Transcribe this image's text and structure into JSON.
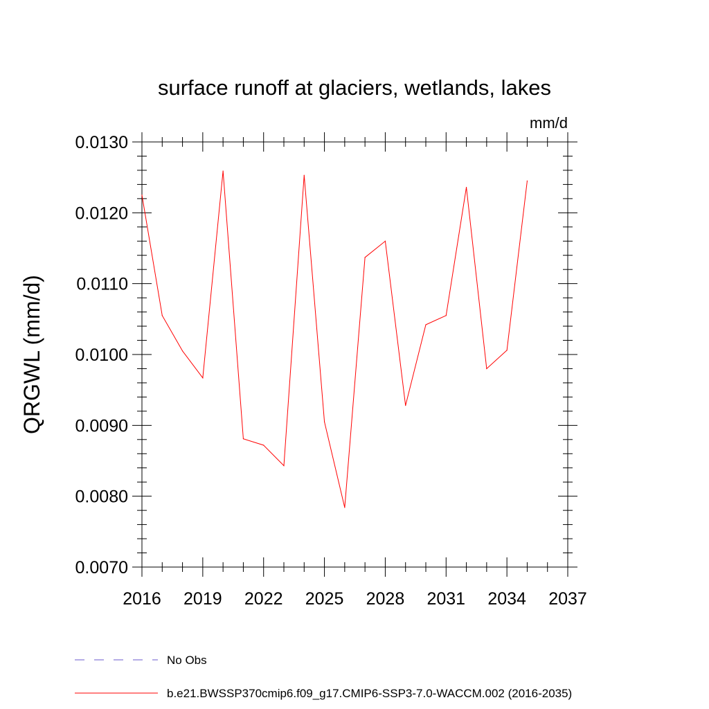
{
  "chart_data": {
    "type": "line",
    "title": "surface runoff at glaciers, wetlands, lakes",
    "units": "mm/d",
    "ylabel": "QRGWL  (mm/d)",
    "xlabel": "",
    "xlim": [
      2016,
      2037
    ],
    "ylim": [
      0.007,
      0.013
    ],
    "x_ticks": [
      "2016",
      "2019",
      "2022",
      "2025",
      "2028",
      "2031",
      "2034",
      "2037"
    ],
    "y_ticks": [
      "0.0070",
      "0.0080",
      "0.0090",
      "0.0100",
      "0.0110",
      "0.0120",
      "0.0130"
    ],
    "x": [
      2016,
      2017,
      2018,
      2019,
      2020,
      2021,
      2022,
      2023,
      2024,
      2025,
      2026,
      2027,
      2028,
      2029,
      2030,
      2031,
      2032,
      2033,
      2034,
      2035
    ],
    "series": [
      {
        "name": "b.e21.BWSSP370cmip6.f09_g17.CMIP6-SSP3-7.0-WACCM.002 (2016-2035)",
        "color": "#ff0000",
        "style": "solid",
        "values": [
          0.01225,
          0.01055,
          0.01005,
          0.00967,
          0.01259,
          0.00881,
          0.00872,
          0.00843,
          0.01253,
          0.00905,
          0.00784,
          0.01137,
          0.0116,
          0.00928,
          0.01042,
          0.01055,
          0.01236,
          0.0098,
          0.01006,
          0.01245
        ]
      }
    ],
    "legend": [
      {
        "label": "No Obs",
        "color": "#6a5acd",
        "style": "dashed"
      },
      {
        "label": "b.e21.BWSSP370cmip6.f09_g17.CMIP6-SSP3-7.0-WACCM.002 (2016-2035)",
        "color": "#ff0000",
        "style": "solid"
      }
    ],
    "legend_position": "bottom",
    "grid": false
  }
}
